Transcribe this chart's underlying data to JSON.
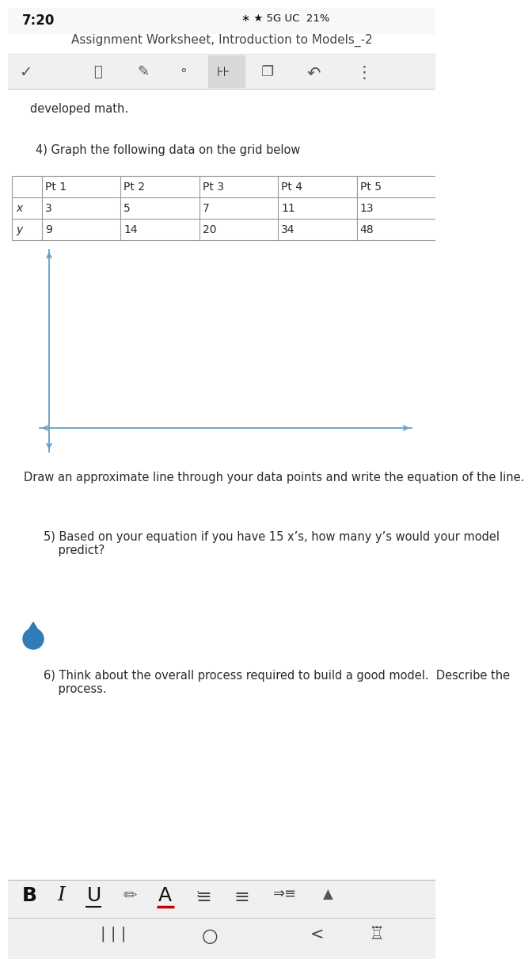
{
  "bg_color": "#ffffff",
  "status_bar_bg": "#f8f8f8",
  "toolbar_bg": "#f0f0f0",
  "toolbar_highlight": "#d8d8d8",
  "nav_bar_bg": "#efefef",
  "status_time": "7:20",
  "title_bar_text": "Assignment Worksheet, Introduction to Models_-2",
  "developed_math": "developed math.",
  "q4_text": "4) Graph the following data on the grid below",
  "table_headers": [
    "",
    "Pt 1",
    "Pt 2",
    "Pt 3",
    "Pt 4",
    "Pt 5"
  ],
  "row_x_label": "x",
  "row_y_label": "y",
  "x_values": [
    "3",
    "5",
    "7",
    "11",
    "13"
  ],
  "y_values": [
    "9",
    "14",
    "20",
    "34",
    "48"
  ],
  "draw_line_text": "Draw an approximate line through your data points and write the equation of the line.",
  "q5_line1": "5) Based on your equation if you have 15 x’s, how many y’s would your model",
  "q5_line2": "    predict?",
  "q6_line1": "6) Think about the overall process required to build a good model.  Describe the",
  "q6_line2": "    process.",
  "axis_color": "#6a9ec5",
  "text_color": "#2a2a2a",
  "table_line_color": "#999999",
  "drop_color": "#2e7cb8",
  "sep_line_color": "#cccccc"
}
